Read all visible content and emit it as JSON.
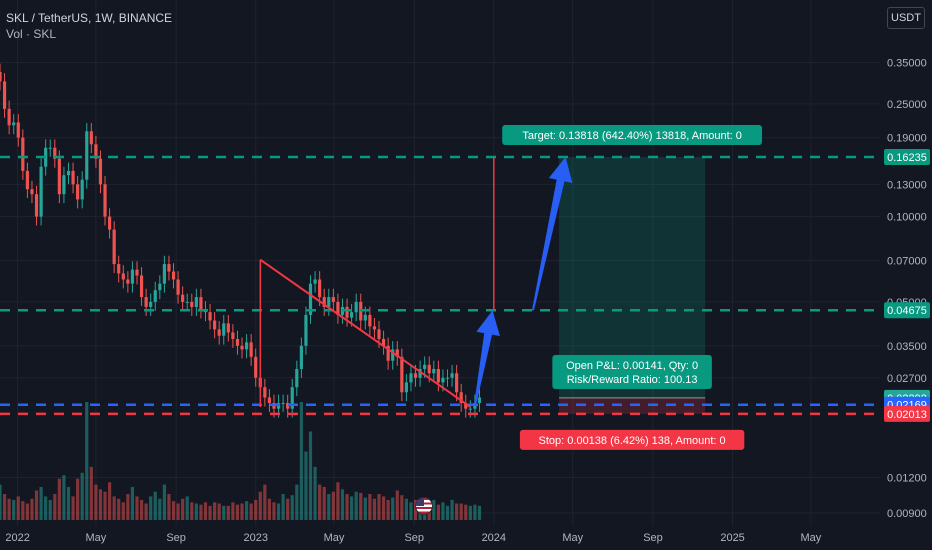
{
  "header": {
    "symbol_title": "SKL / TetherUS, 1W, BINANCE",
    "volume_label": "Vol · SKL",
    "currency_button": "USDT"
  },
  "colors": {
    "background": "#131722",
    "up": "#26a69a",
    "down": "#ef5350",
    "target": "#089981",
    "stop": "#f23645",
    "last_price": "#2962ff",
    "arrow": "#2962ff",
    "trendline": "#f23645"
  },
  "chart_data": {
    "type": "candlestick",
    "title": "SKL / TetherUS, 1W, BINANCE",
    "y_scale": "log",
    "ylim": [
      0.0085,
      0.42
    ],
    "xlim": [
      "2021-12-05",
      "2025-08-15"
    ],
    "grid": true,
    "y_ticks": [
      "0.35000",
      "0.25000",
      "0.19000",
      "0.13000",
      "0.10000",
      "0.07000",
      "0.05000",
      "0.03500",
      "0.02700",
      "0.01200",
      "0.00900"
    ],
    "x_ticks": [
      {
        "label": "2022",
        "date": "2022-01-01"
      },
      {
        "label": "May",
        "date": "2022-05-01"
      },
      {
        "label": "Sep",
        "date": "2022-09-01"
      },
      {
        "label": "2023",
        "date": "2023-01-01"
      },
      {
        "label": "May",
        "date": "2023-05-01"
      },
      {
        "label": "Sep",
        "date": "2023-09-01"
      },
      {
        "label": "2024",
        "date": "2024-01-01"
      },
      {
        "label": "May",
        "date": "2024-05-01"
      },
      {
        "label": "Sep",
        "date": "2024-09-01"
      },
      {
        "label": "2025",
        "date": "2025-01-01"
      },
      {
        "label": "May",
        "date": "2025-05-01"
      }
    ],
    "price_tags": [
      {
        "value": "0.16235",
        "kind": "target"
      },
      {
        "value": "0.04675",
        "kind": "target"
      },
      {
        "value": "0.02292",
        "kind": "last",
        "sub": "7d 0h"
      },
      {
        "value": "0.02169",
        "kind": "last_blue"
      },
      {
        "value": "0.02013",
        "kind": "stop"
      }
    ],
    "horizontal_levels": [
      {
        "price": 0.16235,
        "style": "dashed",
        "color": "target"
      },
      {
        "price": 0.04675,
        "style": "dashed",
        "color": "target"
      },
      {
        "price": 0.02169,
        "style": "dashed",
        "color": "last_price"
      },
      {
        "price": 0.02013,
        "style": "dashed",
        "color": "stop"
      }
    ],
    "position": {
      "entry": 0.02292,
      "target": 0.16235,
      "stop": 0.02013,
      "start": "2024-04-10",
      "end": "2024-11-20",
      "target_label": "Target: 0.13818 (642.40%) 13818, Amount: 0",
      "stop_label": "Stop: 0.00138 (6.42%) 138, Amount: 0",
      "pnl_label": "Open P&L: 0.00141, Qty: 0",
      "rr_label": "Risk/Reward Ratio: 100.13"
    },
    "trendline": [
      {
        "date": "2023-01-08",
        "price": 0.0705
      },
      {
        "date": "2023-11-26",
        "price": 0.0213
      }
    ],
    "vertical_segments": [
      {
        "date": "2023-01-08",
        "from": 0.0705,
        "to": 0.0213
      },
      {
        "date": "2024-01-01",
        "from": 0.0467,
        "to": 0.16235
      }
    ],
    "projection_arrows": [
      {
        "from": {
          "date": "2023-12-03",
          "price": 0.0215
        },
        "to": {
          "date": "2023-12-30",
          "price": 0.0467
        }
      },
      {
        "from": {
          "date": "2024-03-01",
          "price": 0.0467
        },
        "to": {
          "date": "2024-04-20",
          "price": 0.16235
        }
      }
    ],
    "series": [
      {
        "name": "SKL",
        "start_date": "2021-12-05",
        "interval_days": 7,
        "close": [
          0.3,
          0.24,
          0.21,
          0.215,
          0.19,
          0.145,
          0.125,
          0.12,
          0.1,
          0.15,
          0.175,
          0.175,
          0.16,
          0.12,
          0.14,
          0.145,
          0.13,
          0.115,
          0.135,
          0.2,
          0.18,
          0.16,
          0.13,
          0.1,
          0.09,
          0.068,
          0.063,
          0.06,
          0.058,
          0.065,
          0.062,
          0.052,
          0.048,
          0.05,
          0.055,
          0.058,
          0.068,
          0.064,
          0.06,
          0.053,
          0.05,
          0.05,
          0.048,
          0.052,
          0.047,
          0.046,
          0.043,
          0.04,
          0.038,
          0.042,
          0.039,
          0.037,
          0.035,
          0.034,
          0.036,
          0.032,
          0.027,
          0.025,
          0.023,
          0.022,
          0.021,
          0.022,
          0.022,
          0.021,
          0.025,
          0.029,
          0.035,
          0.045,
          0.058,
          0.06,
          0.052,
          0.048,
          0.052,
          0.05,
          0.045,
          0.048,
          0.044,
          0.046,
          0.05,
          0.043,
          0.045,
          0.041,
          0.04,
          0.037,
          0.035,
          0.031,
          0.034,
          0.032,
          0.024,
          0.026,
          0.028,
          0.027,
          0.029,
          0.03,
          0.028,
          0.029,
          0.026,
          0.027,
          0.027,
          0.028,
          0.024,
          0.022,
          0.021,
          0.021,
          0.022,
          0.023
        ],
        "volume": [
          30,
          22,
          18,
          17,
          20,
          16,
          14,
          18,
          25,
          28,
          20,
          17,
          22,
          35,
          38,
          28,
          20,
          35,
          40,
          100,
          45,
          30,
          26,
          24,
          32,
          20,
          18,
          15,
          22,
          28,
          20,
          17,
          14,
          20,
          24,
          18,
          30,
          22,
          16,
          14,
          18,
          20,
          15,
          14,
          13,
          15,
          12,
          15,
          14,
          12,
          12,
          15,
          13,
          14,
          16,
          14,
          17,
          24,
          30,
          18,
          15,
          14,
          22,
          18,
          21,
          30,
          100,
          58,
          75,
          45,
          30,
          28,
          22,
          24,
          32,
          26,
          22,
          20,
          24,
          23,
          19,
          22,
          18,
          22,
          20,
          17,
          19,
          25,
          21,
          18,
          15,
          17,
          18,
          15,
          16,
          17,
          13,
          15,
          12,
          17,
          14,
          14,
          13,
          12,
          13,
          12
        ]
      }
    ]
  }
}
